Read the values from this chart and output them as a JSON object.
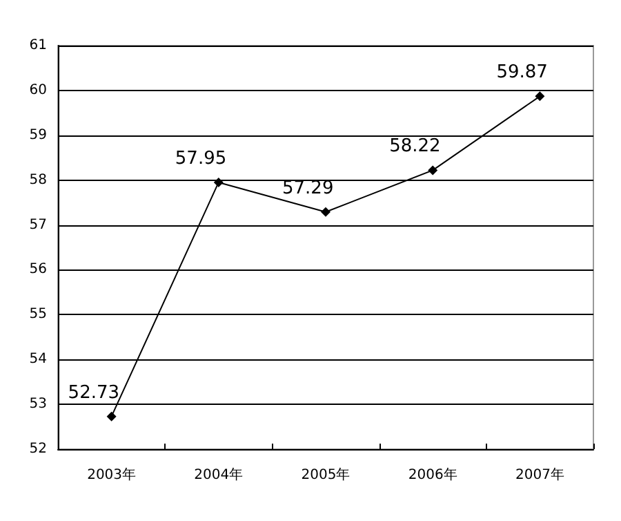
{
  "chart_data": {
    "type": "line",
    "categories": [
      "2003年",
      "2004年",
      "2005年",
      "2006年",
      "2007年"
    ],
    "series": [
      {
        "color": "#000000",
        "values": [
          52.73,
          57.95,
          57.29,
          58.22,
          59.87
        ]
      }
    ],
    "ylim": [
      52,
      61
    ],
    "yticks": [
      52,
      53,
      54,
      55,
      56,
      57,
      58,
      59,
      60,
      61
    ],
    "grid": "y",
    "marker": "diamond",
    "line_style": "solid",
    "data_labels": true
  }
}
